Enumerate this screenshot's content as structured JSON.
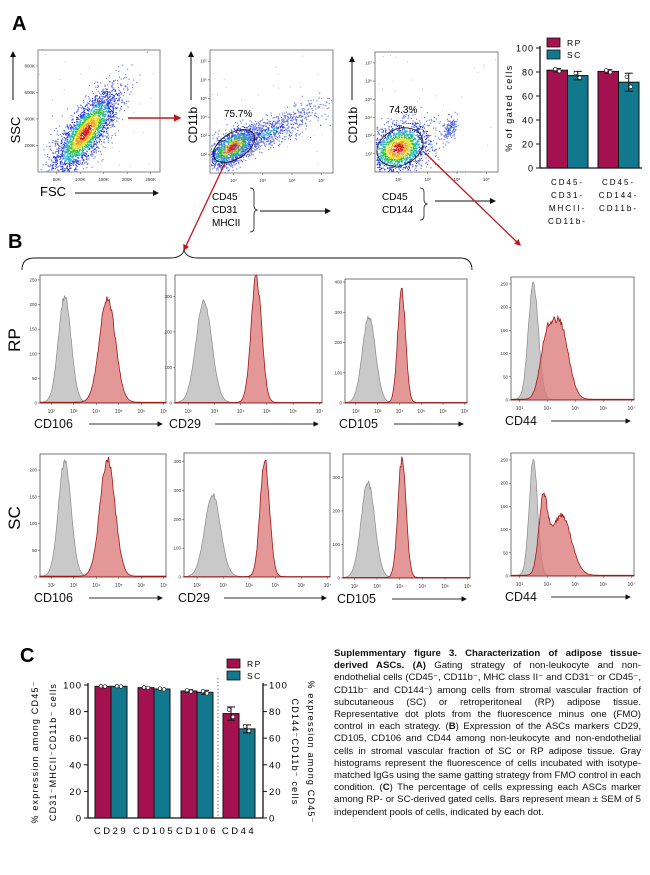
{
  "panel_labels": {
    "a": "A",
    "b": "B",
    "c": "C"
  },
  "colors": {
    "rp": "#a3124f",
    "sc": "#12788e",
    "gate_arrow": "#c0161b",
    "isotype_fill": "#c9c9c9",
    "stained_fill": "#d97474"
  },
  "panel_a": {
    "plot1": {
      "ylabel": "SSC",
      "xlabel": "FSC",
      "yticks": [
        "200K",
        "400K",
        "600K",
        "800K"
      ],
      "xticks": [
        "50K",
        "100K",
        "150K",
        "200K",
        "250K"
      ]
    },
    "plot2": {
      "ylabel": "CD11b",
      "gate_percent": "75.7%",
      "yticks": [
        "10²",
        "10³",
        "10⁴",
        "10⁵",
        "10⁶",
        "10⁷"
      ],
      "xticks": [
        "10⁴",
        "10⁵",
        "10⁶",
        "10⁷"
      ],
      "xlabel_lines": [
        "CD45",
        "CD31",
        "MHCII"
      ]
    },
    "plot3": {
      "ylabel": "CD11b",
      "gate_percent": "74.3%",
      "yticks": [
        "10²",
        "10³",
        "10⁴",
        "10⁵",
        "10⁶",
        "10⁷"
      ],
      "xticks": [
        "10²",
        "10³",
        "10⁴",
        "10⁵"
      ],
      "xlabel_lines": [
        "CD45",
        "CD144"
      ]
    }
  },
  "panel_b": {
    "row_labels": [
      "RP",
      "SC"
    ],
    "histograms": [
      {
        "row": "RP",
        "marker": "CD106",
        "yticks": [
          0,
          50,
          100,
          150,
          200,
          250
        ],
        "ymax": 260,
        "xrange": [
          1.5,
          7.1
        ],
        "isotype": [
          [
            2.6,
            215,
            0.28
          ]
        ],
        "stained": [
          [
            4.5,
            215,
            0.35
          ]
        ]
      },
      {
        "row": "RP",
        "marker": "CD29",
        "yticks": [
          0,
          100,
          200,
          300
        ],
        "ymax": 360,
        "xrange": [
          1.5,
          7.1
        ],
        "isotype": [
          [
            2.6,
            285,
            0.3
          ]
        ],
        "stained": [
          [
            4.6,
            350,
            0.2
          ]
        ]
      },
      {
        "row": "RP",
        "marker": "CD105",
        "yticks": [
          0,
          100,
          200,
          300,
          400
        ],
        "ymax": 410,
        "xrange": [
          1.5,
          7.1
        ],
        "isotype": [
          [
            2.6,
            285,
            0.3
          ]
        ],
        "stained": [
          [
            4.1,
            375,
            0.18
          ]
        ]
      },
      {
        "row": "RP",
        "marker": "CD44",
        "yticks": [
          0,
          50,
          100,
          150,
          200,
          250
        ],
        "ymax": 265,
        "xrange": [
          2.7,
          7.1
        ],
        "isotype": [
          [
            3.5,
            250,
            0.18
          ]
        ],
        "stained": [
          [
            3.95,
            110,
            0.22
          ],
          [
            4.45,
            160,
            0.3
          ]
        ]
      },
      {
        "row": "SC",
        "marker": "CD106",
        "yticks": [
          0,
          50,
          100,
          150,
          200
        ],
        "ymax": 230,
        "xrange": [
          1.5,
          7.1
        ],
        "isotype": [
          [
            2.6,
            215,
            0.28
          ]
        ],
        "stained": [
          [
            4.5,
            220,
            0.33
          ]
        ]
      },
      {
        "row": "SC",
        "marker": "CD29",
        "yticks": [
          0,
          100,
          200,
          300,
          400
        ],
        "ymax": 430,
        "xrange": [
          1.5,
          7.1
        ],
        "isotype": [
          [
            2.6,
            285,
            0.3
          ]
        ],
        "stained": [
          [
            4.6,
            405,
            0.18
          ]
        ]
      },
      {
        "row": "SC",
        "marker": "CD105",
        "yticks": [
          0,
          100,
          200,
          300
        ],
        "ymax": 370,
        "xrange": [
          1.5,
          7.1
        ],
        "isotype": [
          [
            2.6,
            285,
            0.3
          ]
        ],
        "stained": [
          [
            4.1,
            350,
            0.18
          ]
        ]
      },
      {
        "row": "SC",
        "marker": "CD44",
        "yticks": [
          0,
          50,
          100,
          150,
          200,
          250
        ],
        "ymax": 265,
        "xrange": [
          2.7,
          7.1
        ],
        "isotype": [
          [
            3.5,
            250,
            0.15
          ]
        ],
        "stained": [
          [
            3.85,
            150,
            0.16
          ],
          [
            4.5,
            130,
            0.35
          ]
        ]
      }
    ]
  },
  "chart_data": [
    {
      "type": "bar",
      "ylabel": "% of gated cells",
      "ylim": [
        0,
        100
      ],
      "yticks": [
        0,
        20,
        40,
        60,
        80,
        100
      ],
      "categories": [
        [
          "CD45-",
          "CD31-",
          "MHCII-",
          "CD11b-"
        ],
        [
          "CD45-",
          "CD144-",
          "CD11b-"
        ]
      ],
      "series": [
        {
          "name": "RP",
          "values": [
            81.5,
            80.5
          ],
          "sem": [
            1.5,
            1.5
          ]
        },
        {
          "name": "SC",
          "values": [
            77,
            71.5
          ],
          "sem": [
            3.5,
            7.5
          ]
        }
      ],
      "legend": "top"
    },
    {
      "type": "bar",
      "ylabel_left": [
        "% expression among CD45⁻",
        "CD31⁻MHCII⁻CD11b⁻ cells"
      ],
      "ylabel_right": [
        "% expression among CD45⁻",
        "CD144⁻CD11b⁻ cells"
      ],
      "ylim": [
        0,
        100
      ],
      "yticks": [
        0,
        20,
        40,
        60,
        80,
        100
      ],
      "categories": [
        "CD29",
        "CD105",
        "CD106",
        "CD44"
      ],
      "series": [
        {
          "name": "RP",
          "values": [
            99,
            98,
            95.5,
            78.5
          ],
          "sem": [
            0.3,
            0.4,
            1,
            5
          ]
        },
        {
          "name": "SC",
          "values": [
            99,
            97,
            94.5,
            67
          ],
          "sem": [
            0.3,
            0.5,
            1.5,
            3
          ]
        }
      ],
      "legend": "top-right"
    }
  ],
  "caption": {
    "title": "Suplemmentary figure 3. Characterization of adipose tissue-derived ASCs.",
    "a_label": "(A)",
    "a_text": " Gating strategy of non-leukocyte and non-endothelial cells (CD45⁻, CD11b⁻, MHC class II⁻ and CD31⁻ or CD45⁻, CD11b⁻ and CD144⁻) among cells from stromal vascular fraction of subcutaneous (SC) or retroperitoneal (RP) adipose tissue. Representative dot plots from the fluorescence minus one (FMO) control in each strategy. (",
    "b_label": "B",
    "b_text": ") Expression of the  ASCs markers CD29, CD105, CD106 and CD44 among non-leukocyte and non-endothelial cells in stromal vascular fraction of SC or RP adipose tissue. Gray histograms represent the fluorescence of cells incubated with isotype-matched IgGs using the same gatting strategy from FMO control in each condition. (",
    "c_label": "C",
    "c_text": ") The percentage of cells expressing each ASCs marker among RP- or SC-derived gated cells. Bars represent mean ± SEM of 5 independent pools of cells, indicated by each dot."
  }
}
